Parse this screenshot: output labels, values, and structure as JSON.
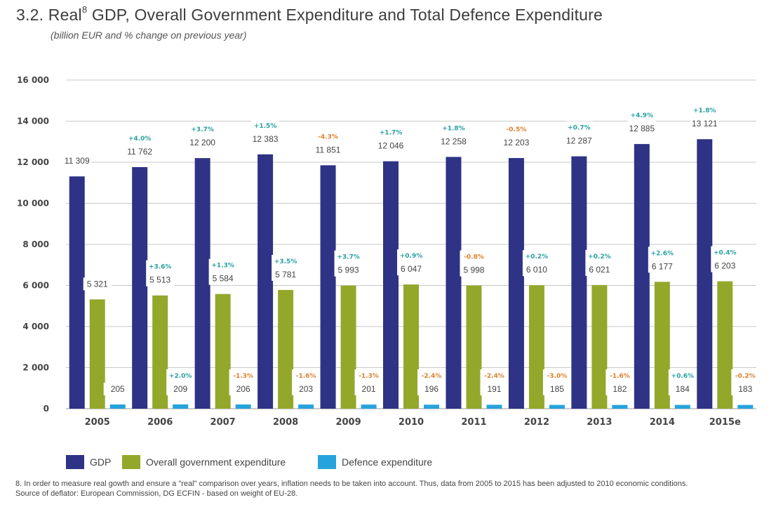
{
  "title_prefix": "3.2. Real",
  "title_sup": "8",
  "title_rest": "GDP, Overall Government Expenditure and Total Defence Expenditure",
  "subtitle": "(billion EUR and % change on previous year)",
  "colors": {
    "gdp": "#2e3385",
    "gov": "#93a82a",
    "def": "#27a3dc",
    "pos": "#2aa0a5",
    "neg": "#e0812d",
    "grid": "#c9c9c9"
  },
  "chart_data": {
    "type": "bar",
    "title": "",
    "ylim": [
      0,
      16000
    ],
    "yticks": [
      "0",
      "2 000",
      "4 000",
      "6 000",
      "8 000",
      "10 000",
      "12 000",
      "14 000",
      "16 000"
    ],
    "ytick_values": [
      0,
      2000,
      4000,
      6000,
      8000,
      10000,
      12000,
      14000,
      16000
    ],
    "categories": [
      "2005",
      "2006",
      "2007",
      "2008",
      "2009",
      "2010",
      "2011",
      "2012",
      "2013",
      "2014",
      "2015e"
    ],
    "grid": true,
    "series": [
      {
        "name": "GDP",
        "values": [
          11309,
          11762,
          12200,
          12383,
          11851,
          12046,
          12258,
          12203,
          12287,
          12885,
          13121
        ],
        "labels": [
          "11 309",
          "11 762",
          "12 200",
          "12 383",
          "11 851",
          "12 046",
          "12 258",
          "12 203",
          "12 287",
          "12 885",
          "13 121"
        ],
        "changes": [
          "",
          "+4.0%",
          "+3.7%",
          "+1.5%",
          "-4.3%",
          "+1.7%",
          "+1.8%",
          "-0.5%",
          "+0.7%",
          "+4.9%",
          "+1.8%"
        ]
      },
      {
        "name": "Overall government expenditure",
        "values": [
          5321,
          5513,
          5584,
          5781,
          5993,
          6047,
          5998,
          6010,
          6021,
          6177,
          6203
        ],
        "labels": [
          "5 321",
          "5 513",
          "5 584",
          "5 781",
          "5 993",
          "6 047",
          "5 998",
          "6 010",
          "6 021",
          "6 177",
          "6 203"
        ],
        "changes": [
          "",
          "+3.6%",
          "+1.3%",
          "+3.5%",
          "+3.7%",
          "+0.9%",
          "-0.8%",
          "+0.2%",
          "+0.2%",
          "+2.6%",
          "+0.4%"
        ]
      },
      {
        "name": "Defence expenditure",
        "values": [
          205,
          209,
          206,
          203,
          201,
          196,
          191,
          185,
          182,
          184,
          183
        ],
        "labels": [
          "205",
          "209",
          "206",
          "203",
          "201",
          "196",
          "191",
          "185",
          "182",
          "184",
          "183"
        ],
        "changes": [
          "",
          "+2.0%",
          "-1.3%",
          "-1.6%",
          "-1.3%",
          "-2.4%",
          "-2.4%",
          "-3.0%",
          "-1.6%",
          "+0.6%",
          "-0.2%"
        ]
      }
    ]
  },
  "legend": {
    "gdp": "GDP",
    "gov": "Overall government expenditure",
    "def": "Defence expenditure"
  },
  "footnote": {
    "line1": "8. In order to measure real gowth and ensure a \"real\" comparison over years, inflation needs to be taken into account. Thus, data from 2005 to 2015 has been adjusted to 2010 economic conditions.",
    "line2": "Source of deflator: European Commission, DG ECFIN - based on weight of EU-28."
  }
}
